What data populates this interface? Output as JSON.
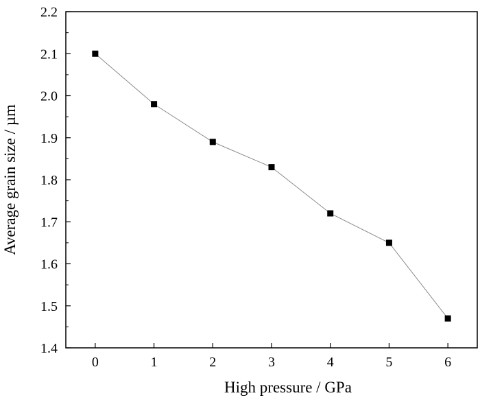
{
  "chart_data": {
    "type": "line",
    "title": "",
    "xlabel": "High pressure / GPa",
    "ylabel": "Average grain size / µm",
    "xlim": [
      -0.5,
      6.5
    ],
    "ylim": [
      1.4,
      2.2
    ],
    "xticks": [
      0,
      1,
      2,
      3,
      4,
      5,
      6
    ],
    "yticks": [
      1.4,
      1.5,
      1.6,
      1.7,
      1.8,
      1.9,
      2.0,
      2.1,
      2.2
    ],
    "xtick_labels": [
      "0",
      "1",
      "2",
      "3",
      "4",
      "5",
      "6"
    ],
    "ytick_labels": [
      "1.4",
      "1.5",
      "1.6",
      "1.7",
      "1.8",
      "1.9",
      "2.0",
      "2.1",
      "2.2"
    ],
    "grid": false,
    "legend": "none",
    "marker": "square",
    "colors": {
      "line": "#8a8a8a",
      "marker": "#000000",
      "axis": "#000000"
    },
    "series": [
      {
        "x": [
          0,
          1,
          2,
          3,
          4,
          5,
          6
        ],
        "y": [
          2.1,
          1.98,
          1.89,
          1.83,
          1.72,
          1.65,
          1.47
        ]
      }
    ]
  }
}
